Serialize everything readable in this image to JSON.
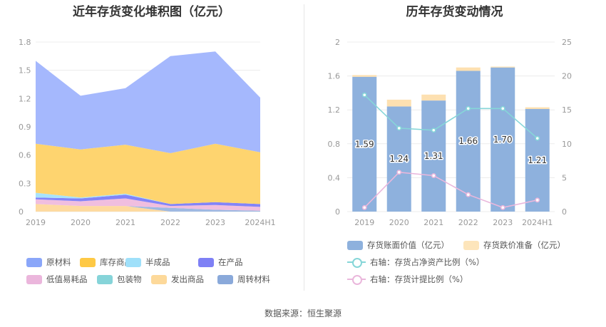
{
  "left_title": "近年存货变化堆积图（亿元）",
  "right_title": "历年存货变动情况",
  "source": "数据来源：恒生聚源",
  "chart_data": [
    {
      "type": "area",
      "title": "近年存货变化堆积图（亿元）",
      "x": [
        "2019",
        "2020",
        "2021",
        "2022",
        "2023",
        "2024H1"
      ],
      "ylim": [
        0,
        1.8
      ],
      "yticks": [
        "0",
        "0.3",
        "0.6",
        "0.9",
        "1.2",
        "1.5",
        "1.8"
      ],
      "stacked": true,
      "series": [
        {
          "name": "发出商品",
          "color": "#fedaa0",
          "values": [
            0.08,
            0.06,
            0.06,
            0.0,
            0.0,
            0.0
          ]
        },
        {
          "name": "周转材料",
          "color": "#9fb9e2",
          "values": [
            0.0,
            0.0,
            0.0,
            0.04,
            0.02,
            0.01
          ]
        },
        {
          "name": "包装物",
          "color": "#8fdbe0",
          "values": [
            0.0,
            0.0,
            0.0,
            0.0,
            0.0,
            0.0
          ]
        },
        {
          "name": "低值易耗品",
          "color": "#f0bedf",
          "values": [
            0.05,
            0.05,
            0.08,
            0.02,
            0.05,
            0.04
          ]
        },
        {
          "name": "在产品",
          "color": "#8384f8",
          "values": [
            0.02,
            0.03,
            0.04,
            0.02,
            0.03,
            0.03
          ]
        },
        {
          "name": "半成品",
          "color": "#a8e3fb",
          "values": [
            0.05,
            0.01,
            0.01,
            0.0,
            0.0,
            0.0
          ]
        },
        {
          "name": "库存商品",
          "color": "#fed46f",
          "values": [
            0.52,
            0.51,
            0.52,
            0.54,
            0.62,
            0.55
          ]
        },
        {
          "name": "原材料",
          "color": "#a5b8fd",
          "values": [
            0.88,
            0.57,
            0.6,
            1.03,
            0.98,
            0.58
          ]
        }
      ]
    },
    {
      "type": "bar",
      "title": "历年存货变动情况",
      "x": [
        "2019",
        "2020",
        "2021",
        "2022",
        "2023",
        "2024H1"
      ],
      "ylim": [
        0,
        2
      ],
      "yticks": [
        "0",
        "0.4",
        "0.8",
        "1.2",
        "1.6",
        "2"
      ],
      "y2lim": [
        0,
        25
      ],
      "y2ticks": [
        "0",
        "5",
        "10",
        "15",
        "20",
        "25"
      ],
      "stacked": true,
      "series": [
        {
          "name": "存货账面价值（亿元）",
          "color": "#8eb1dd",
          "values": [
            1.59,
            1.24,
            1.31,
            1.66,
            1.7,
            1.21
          ],
          "labels": [
            "1.59",
            "1.24",
            "1.31",
            "1.66",
            "1.70",
            "1.21"
          ]
        },
        {
          "name": "存货跌价准备（亿元）",
          "color": "#fde0b1",
          "values": [
            0.02,
            0.08,
            0.07,
            0.04,
            0.01,
            0.02
          ]
        }
      ],
      "lines": [
        {
          "name": "右轴：存货占净资产比例（%）",
          "color": "#86d6d8",
          "axis": "right",
          "values": [
            17.2,
            12.3,
            12.0,
            15.2,
            15.2,
            10.8
          ]
        },
        {
          "name": "右轴：存货计提比例（%）",
          "color": "#eab7dc",
          "axis": "right",
          "values": [
            0.6,
            5.8,
            5.3,
            2.5,
            0.6,
            1.7
          ]
        }
      ]
    }
  ],
  "left_legend": [
    {
      "label": "原材料",
      "color": "#8aa6f9"
    },
    {
      "label": "库存商品",
      "color": "#fec945"
    },
    {
      "label": "半成品",
      "color": "#9fe0fa"
    },
    {
      "label": "在产品",
      "color": "#7e80f5"
    },
    {
      "label": "低值易耗品",
      "color": "#ebb6dc"
    },
    {
      "label": "包装物",
      "color": "#86d4d9"
    },
    {
      "label": "发出商品",
      "color": "#fdd99a"
    },
    {
      "label": "周转材料",
      "color": "#8aa9da"
    }
  ],
  "right_legend": [
    {
      "label": "存货账面价值（亿元）",
      "color": "#8eb1dd",
      "kind": "box"
    },
    {
      "label": "存货跌价准备（亿元）",
      "color": "#fde5bb",
      "kind": "box"
    },
    {
      "label": "右轴：存货占净资产比例（%）",
      "color": "#86d6d8",
      "kind": "line"
    },
    {
      "label": "右轴：存货计提比例（%）",
      "color": "#eab7dc",
      "kind": "line"
    }
  ]
}
